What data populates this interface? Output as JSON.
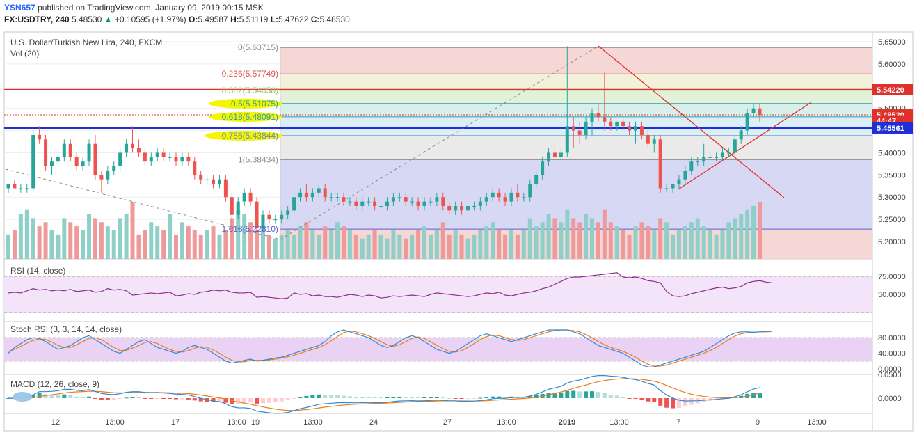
{
  "header": {
    "user": "YSN657",
    "published_text": "published on TradingView.com, January 09, 2019 00:15 MSK",
    "symbol": "FX:USDTRY, 240",
    "last": "5.48530",
    "change": "+0.10595 (+1.97%)",
    "o_label": "O:",
    "o_value": "5.49587",
    "h_label": "H:",
    "h_value": "5.51119",
    "l_label": "L:",
    "l_value": "5.47622",
    "c_label": "C:",
    "c_value": "5.48530"
  },
  "main_pane": {
    "title": "U.S. Dollar/Turkish New Lira, 240, FXCM",
    "volume_label": "Vol (20)"
  },
  "fib": [
    {
      "label": "0(5.63715)",
      "price": 5.63715,
      "color": "#8c8c8c",
      "fill": "#f3d0cf"
    },
    {
      "label": "0.236(5.57749)",
      "price": 5.57749,
      "color": "#e0544e",
      "fill": "#eef0d2"
    },
    {
      "label": "0.382(5.54058)",
      "price": 5.54058,
      "color": "#9bbf5c",
      "fill": "#dfeed4"
    },
    {
      "label": "0.5(5.51075)",
      "price": 5.51075,
      "color": "#26a69a",
      "fill": "#d2ece8"
    },
    {
      "label": "0.618(5.48091)",
      "price": 5.48091,
      "color": "#2aa0b0",
      "fill": "#d6ecf4"
    },
    {
      "label": "0.786(5.43844)",
      "price": 5.43844,
      "color": "#6a8fbf",
      "fill": "#e6e6e6"
    },
    {
      "label": "1(5.38434)",
      "price": 5.38434,
      "color": "#8c8c8c",
      "fill": "#d0d2f2"
    },
    {
      "label": "1.618(5.22810)",
      "price": 5.2281,
      "color": "#5c5cd6",
      "fill": "#f3d0cf"
    }
  ],
  "price_badges": [
    {
      "text": "5.54220",
      "price": 5.5422,
      "bg": "#e0302a"
    },
    {
      "text": "5.48530",
      "price": 5.4853,
      "bg": "#e0302a"
    },
    {
      "text": "44:47",
      "price": 5.472,
      "bg": "#e0302a"
    },
    {
      "text": "5.45561",
      "price": 5.45561,
      "bg": "#1f2fd6"
    }
  ],
  "price_axis_ticks": [
    "5.65000",
    "5.60000",
    "5.55000",
    "5.50000",
    "5.45000",
    "5.40000",
    "5.35000",
    "5.30000",
    "5.25000",
    "5.20000"
  ],
  "rsi": {
    "label": "RSI (14, close)",
    "ticks": [
      "75.0000",
      "50.0000"
    ]
  },
  "stoch": {
    "label": "Stoch RSI (3, 3, 14, 14, close)",
    "ticks": [
      "80.0000",
      "40.0000",
      "0.0000"
    ]
  },
  "macd": {
    "label": "MACD (12, 26, close, 9)",
    "ticks": [
      "0.0500",
      "0.0000"
    ]
  },
  "time_axis": [
    "12",
    "13:00",
    "17",
    "13:00",
    "19",
    "13:00",
    "24",
    "27",
    "13:00",
    "2019",
    "13:00",
    "7",
    "9",
    "13:00"
  ],
  "chart_data": {
    "type": "candlestick",
    "title": "U.S. Dollar/Turkish New Lira, 240, FXCM",
    "ylim": [
      5.18,
      5.66
    ],
    "ohlc": [
      [
        5.32,
        5.33,
        5.31,
        5.33
      ],
      [
        5.33,
        5.34,
        5.32,
        5.32
      ],
      [
        5.32,
        5.33,
        5.31,
        5.32
      ],
      [
        5.32,
        5.33,
        5.31,
        5.32
      ],
      [
        5.32,
        5.45,
        5.31,
        5.44
      ],
      [
        5.44,
        5.46,
        5.42,
        5.43
      ],
      [
        5.43,
        5.44,
        5.36,
        5.37
      ],
      [
        5.37,
        5.39,
        5.35,
        5.38
      ],
      [
        5.38,
        5.41,
        5.37,
        5.39
      ],
      [
        5.39,
        5.43,
        5.38,
        5.42
      ],
      [
        5.42,
        5.43,
        5.38,
        5.39
      ],
      [
        5.39,
        5.4,
        5.36,
        5.37
      ],
      [
        5.37,
        5.39,
        5.36,
        5.38
      ],
      [
        5.38,
        5.43,
        5.37,
        5.42
      ],
      [
        5.42,
        5.44,
        5.34,
        5.35
      ],
      [
        5.35,
        5.36,
        5.31,
        5.34
      ],
      [
        5.34,
        5.37,
        5.33,
        5.36
      ],
      [
        5.36,
        5.38,
        5.35,
        5.37
      ],
      [
        5.37,
        5.41,
        5.36,
        5.4
      ],
      [
        5.4,
        5.43,
        5.39,
        5.42
      ],
      [
        5.42,
        5.46,
        5.4,
        5.41
      ],
      [
        5.41,
        5.43,
        5.39,
        5.4
      ],
      [
        5.4,
        5.41,
        5.37,
        5.38
      ],
      [
        5.38,
        5.4,
        5.37,
        5.39
      ],
      [
        5.39,
        5.41,
        5.38,
        5.4
      ],
      [
        5.4,
        5.41,
        5.38,
        5.39
      ],
      [
        5.39,
        5.4,
        5.38,
        5.39
      ],
      [
        5.39,
        5.4,
        5.37,
        5.38
      ],
      [
        5.38,
        5.4,
        5.37,
        5.39
      ],
      [
        5.39,
        5.4,
        5.37,
        5.38
      ],
      [
        5.38,
        5.39,
        5.34,
        5.35
      ],
      [
        5.35,
        5.36,
        5.33,
        5.34
      ],
      [
        5.34,
        5.35,
        5.33,
        5.34
      ],
      [
        5.34,
        5.35,
        5.32,
        5.33
      ],
      [
        5.33,
        5.35,
        5.32,
        5.34
      ],
      [
        5.34,
        5.35,
        5.29,
        5.3
      ],
      [
        5.3,
        5.31,
        5.23,
        5.26
      ],
      [
        5.26,
        5.3,
        5.25,
        5.29
      ],
      [
        5.29,
        5.32,
        5.28,
        5.31
      ],
      [
        5.31,
        5.32,
        5.28,
        5.29
      ],
      [
        5.29,
        5.3,
        5.22,
        5.23
      ],
      [
        5.23,
        5.27,
        5.22,
        5.26
      ],
      [
        5.26,
        5.27,
        5.24,
        5.25
      ],
      [
        5.25,
        5.26,
        5.24,
        5.25
      ],
      [
        5.25,
        5.27,
        5.24,
        5.26
      ],
      [
        5.26,
        5.28,
        5.25,
        5.27
      ],
      [
        5.27,
        5.31,
        5.26,
        5.3
      ],
      [
        5.3,
        5.32,
        5.29,
        5.31
      ],
      [
        5.31,
        5.33,
        5.29,
        5.3
      ],
      [
        5.3,
        5.32,
        5.29,
        5.31
      ],
      [
        5.31,
        5.33,
        5.3,
        5.32
      ],
      [
        5.32,
        5.33,
        5.29,
        5.3
      ],
      [
        5.3,
        5.31,
        5.29,
        5.3
      ],
      [
        5.3,
        5.31,
        5.29,
        5.3
      ],
      [
        5.3,
        5.31,
        5.28,
        5.29
      ],
      [
        5.29,
        5.3,
        5.28,
        5.29
      ],
      [
        5.29,
        5.3,
        5.27,
        5.28
      ],
      [
        5.28,
        5.3,
        5.27,
        5.29
      ],
      [
        5.29,
        5.3,
        5.28,
        5.29
      ],
      [
        5.29,
        5.3,
        5.27,
        5.28
      ],
      [
        5.28,
        5.29,
        5.27,
        5.28
      ],
      [
        5.28,
        5.3,
        5.27,
        5.29
      ],
      [
        5.29,
        5.31,
        5.28,
        5.3
      ],
      [
        5.3,
        5.31,
        5.29,
        5.3
      ],
      [
        5.3,
        5.31,
        5.28,
        5.29
      ],
      [
        5.29,
        5.3,
        5.28,
        5.29
      ],
      [
        5.29,
        5.3,
        5.27,
        5.28
      ],
      [
        5.28,
        5.3,
        5.27,
        5.29
      ],
      [
        5.29,
        5.3,
        5.28,
        5.29
      ],
      [
        5.29,
        5.31,
        5.28,
        5.3
      ],
      [
        5.3,
        5.31,
        5.27,
        5.28
      ],
      [
        5.28,
        5.29,
        5.26,
        5.27
      ],
      [
        5.27,
        5.29,
        5.26,
        5.28
      ],
      [
        5.28,
        5.29,
        5.26,
        5.27
      ],
      [
        5.27,
        5.29,
        5.26,
        5.28
      ],
      [
        5.28,
        5.29,
        5.27,
        5.28
      ],
      [
        5.28,
        5.3,
        5.27,
        5.29
      ],
      [
        5.29,
        5.31,
        5.28,
        5.3
      ],
      [
        5.3,
        5.32,
        5.29,
        5.31
      ],
      [
        5.31,
        5.32,
        5.29,
        5.3
      ],
      [
        5.3,
        5.31,
        5.28,
        5.29
      ],
      [
        5.29,
        5.32,
        5.28,
        5.31
      ],
      [
        5.31,
        5.33,
        5.29,
        5.3
      ],
      [
        5.3,
        5.31,
        5.29,
        5.3
      ],
      [
        5.3,
        5.34,
        5.29,
        5.33
      ],
      [
        5.33,
        5.36,
        5.32,
        5.35
      ],
      [
        5.35,
        5.39,
        5.34,
        5.38
      ],
      [
        5.38,
        5.41,
        5.37,
        5.4
      ],
      [
        5.4,
        5.42,
        5.38,
        5.39
      ],
      [
        5.39,
        5.41,
        5.38,
        5.4
      ],
      [
        5.4,
        5.64,
        5.39,
        5.46
      ],
      [
        5.46,
        5.48,
        5.41,
        5.45
      ],
      [
        5.45,
        5.47,
        5.42,
        5.44
      ],
      [
        5.44,
        5.48,
        5.43,
        5.47
      ],
      [
        5.47,
        5.5,
        5.44,
        5.49
      ],
      [
        5.49,
        5.51,
        5.47,
        5.48
      ],
      [
        5.48,
        5.58,
        5.45,
        5.47
      ],
      [
        5.47,
        5.48,
        5.45,
        5.46
      ],
      [
        5.46,
        5.47,
        5.45,
        5.47
      ],
      [
        5.47,
        5.48,
        5.45,
        5.46
      ],
      [
        5.46,
        5.47,
        5.44,
        5.45
      ],
      [
        5.45,
        5.47,
        5.42,
        5.46
      ],
      [
        5.46,
        5.47,
        5.43,
        5.44
      ],
      [
        5.44,
        5.45,
        5.41,
        5.42
      ],
      [
        5.42,
        5.44,
        5.4,
        5.43
      ],
      [
        5.43,
        5.44,
        5.31,
        5.32
      ],
      [
        5.32,
        5.33,
        5.31,
        5.32
      ],
      [
        5.32,
        5.33,
        5.31,
        5.33
      ],
      [
        5.33,
        5.35,
        5.32,
        5.34
      ],
      [
        5.34,
        5.37,
        5.33,
        5.36
      ],
      [
        5.36,
        5.39,
        5.35,
        5.38
      ],
      [
        5.38,
        5.39,
        5.37,
        5.38
      ],
      [
        5.38,
        5.42,
        5.37,
        5.39
      ],
      [
        5.39,
        5.4,
        5.38,
        5.39
      ],
      [
        5.39,
        5.4,
        5.38,
        5.39
      ],
      [
        5.39,
        5.41,
        5.38,
        5.4
      ],
      [
        5.4,
        5.41,
        5.39,
        5.4
      ],
      [
        5.4,
        5.44,
        5.39,
        5.43
      ],
      [
        5.43,
        5.46,
        5.42,
        5.45
      ],
      [
        5.45,
        5.5,
        5.44,
        5.49
      ],
      [
        5.49,
        5.51,
        5.48,
        5.5
      ],
      [
        5.5,
        5.51,
        5.47,
        5.485
      ]
    ],
    "volume": [
      0.3,
      0.35,
      0.55,
      0.6,
      0.5,
      0.4,
      0.45,
      0.35,
      0.3,
      0.5,
      0.45,
      0.4,
      0.35,
      0.55,
      0.5,
      0.45,
      0.4,
      0.35,
      0.5,
      0.55,
      0.7,
      0.3,
      0.35,
      0.45,
      0.4,
      0.35,
      0.55,
      0.3,
      0.45,
      0.4,
      0.35,
      0.3,
      0.35,
      0.4,
      0.3,
      0.35,
      0.5,
      0.6,
      0.55,
      0.45,
      0.35,
      0.4,
      0.3,
      0.25,
      0.3,
      0.35,
      0.3,
      0.4,
      0.45,
      0.35,
      0.3,
      0.4,
      0.35,
      0.45,
      0.4,
      0.35,
      0.3,
      0.25,
      0.3,
      0.35,
      0.3,
      0.25,
      0.35,
      0.3,
      0.25,
      0.3,
      0.35,
      0.4,
      0.3,
      0.35,
      0.45,
      0.3,
      0.35,
      0.3,
      0.25,
      0.3,
      0.35,
      0.4,
      0.45,
      0.35,
      0.3,
      0.35,
      0.3,
      0.35,
      0.5,
      0.4,
      0.45,
      0.55,
      0.5,
      0.45,
      0.6,
      0.5,
      0.45,
      0.55,
      0.5,
      0.45,
      0.6,
      0.45,
      0.4,
      0.35,
      0.3,
      0.4,
      0.45,
      0.4,
      0.35,
      0.5,
      0.45,
      0.3,
      0.35,
      0.4,
      0.45,
      0.5,
      0.4,
      0.35,
      0.3,
      0.35,
      0.45,
      0.5,
      0.55,
      0.6,
      0.65,
      0.7
    ],
    "rsi": [
      52,
      53,
      52,
      55,
      58,
      56,
      57,
      55,
      56,
      55,
      57,
      54,
      55,
      56,
      53,
      54,
      58,
      56,
      57,
      55,
      49,
      50,
      51,
      52,
      51,
      52,
      53,
      48,
      49,
      51,
      50,
      53,
      54,
      56,
      55,
      56,
      53,
      52,
      52,
      53,
      46,
      47,
      46,
      45,
      44,
      45,
      52,
      50,
      51,
      48,
      49,
      47,
      47,
      46,
      48,
      50,
      49,
      47,
      49,
      48,
      45,
      46,
      48,
      47,
      48,
      49,
      48,
      47,
      50,
      52,
      51,
      50,
      49,
      48,
      47,
      48,
      50,
      52,
      51,
      53,
      49,
      48,
      50,
      52,
      53,
      55,
      58,
      60,
      64,
      68,
      72,
      74,
      74,
      75,
      76,
      77,
      78,
      79,
      80,
      74,
      73,
      74,
      72,
      69,
      68,
      66,
      54,
      48,
      47,
      48,
      51,
      53,
      55,
      57,
      59,
      60,
      58,
      59,
      61,
      66,
      68,
      69,
      67,
      66
    ],
    "stoch_k": [
      40,
      55,
      65,
      75,
      80,
      78,
      70,
      60,
      50,
      55,
      60,
      70,
      80,
      85,
      75,
      65,
      55,
      45,
      40,
      50,
      60,
      70,
      75,
      65,
      55,
      50,
      45,
      40,
      45,
      55,
      60,
      55,
      50,
      40,
      30,
      20,
      15,
      18,
      22,
      25,
      20,
      22,
      25,
      28,
      30,
      35,
      40,
      45,
      50,
      55,
      60,
      70,
      85,
      95,
      100,
      95,
      90,
      85,
      80,
      70,
      60,
      55,
      60,
      70,
      80,
      85,
      80,
      70,
      60,
      50,
      45,
      40,
      45,
      55,
      65,
      75,
      85,
      90,
      85,
      80,
      75,
      70,
      75,
      80,
      85,
      90,
      95,
      100,
      100,
      100,
      100,
      95,
      90,
      80,
      70,
      60,
      55,
      50,
      45,
      40,
      30,
      20,
      10,
      5,
      5,
      10,
      15,
      20,
      25,
      30,
      35,
      40,
      45,
      55,
      65,
      75,
      85,
      92,
      95,
      95,
      94,
      95,
      96,
      97
    ],
    "stoch_d": [
      45,
      50,
      58,
      66,
      73,
      77,
      75,
      69,
      60,
      55,
      55,
      62,
      70,
      78,
      80,
      75,
      65,
      55,
      47,
      48,
      53,
      60,
      68,
      70,
      65,
      57,
      50,
      45,
      43,
      47,
      53,
      57,
      55,
      48,
      40,
      30,
      22,
      18,
      18,
      22,
      22,
      22,
      23,
      25,
      28,
      31,
      35,
      40,
      45,
      50,
      55,
      62,
      72,
      83,
      93,
      97,
      95,
      90,
      85,
      78,
      70,
      62,
      58,
      62,
      70,
      78,
      82,
      78,
      70,
      60,
      52,
      45,
      43,
      47,
      55,
      65,
      75,
      83,
      87,
      85,
      80,
      75,
      73,
      75,
      80,
      85,
      90,
      95,
      98,
      100,
      100,
      98,
      95,
      88,
      80,
      70,
      62,
      55,
      50,
      45,
      38,
      30,
      20,
      12,
      7,
      7,
      10,
      15,
      20,
      25,
      30,
      35,
      40,
      47,
      55,
      65,
      75,
      84,
      90,
      93,
      94,
      95,
      95,
      96
    ]
  }
}
